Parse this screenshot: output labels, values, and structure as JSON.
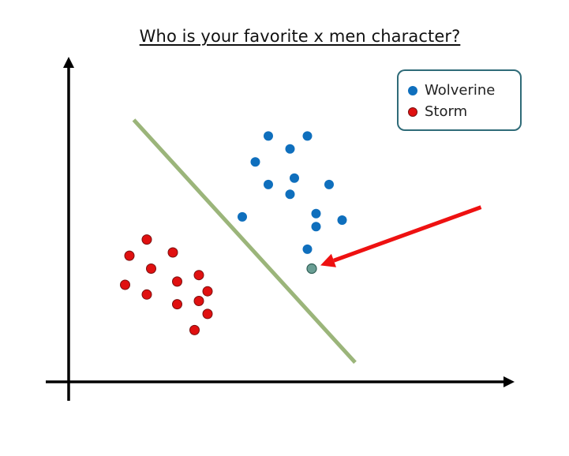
{
  "chart_data": {
    "type": "scatter",
    "title": "Who is your favorite x men character?",
    "xlabel": "",
    "ylabel": "",
    "xlim": [
      0,
      10
    ],
    "ylim": [
      0,
      10
    ],
    "grid": false,
    "legend_position": "top-right",
    "series": [
      {
        "name": "Wolverine",
        "color": "#0f6fbd",
        "points": [
          [
            4.6,
            7.6
          ],
          [
            5.1,
            7.2
          ],
          [
            5.5,
            7.6
          ],
          [
            4.3,
            6.8
          ],
          [
            4.6,
            6.1
          ],
          [
            4.0,
            5.1
          ],
          [
            5.1,
            5.8
          ],
          [
            5.2,
            6.3
          ],
          [
            6.0,
            6.1
          ],
          [
            5.7,
            5.2
          ],
          [
            5.7,
            4.8
          ],
          [
            5.5,
            4.1
          ],
          [
            6.3,
            5.0
          ]
        ]
      },
      {
        "name": "Storm",
        "color": "#e01010",
        "points": [
          [
            1.8,
            4.4
          ],
          [
            1.4,
            3.9
          ],
          [
            2.4,
            4.0
          ],
          [
            1.9,
            3.5
          ],
          [
            1.3,
            3.0
          ],
          [
            2.5,
            3.1
          ],
          [
            3.0,
            3.3
          ],
          [
            1.8,
            2.7
          ],
          [
            2.5,
            2.4
          ],
          [
            3.0,
            2.5
          ],
          [
            3.2,
            2.8
          ],
          [
            3.2,
            2.1
          ],
          [
            2.9,
            1.6
          ]
        ]
      },
      {
        "color": "#6a9e94",
        "points": [
          [
            5.6,
            3.5
          ]
        ]
      }
    ],
    "decision_boundary": {
      "color": "#9bb57a",
      "from": [
        1.5,
        8.1
      ],
      "to": [
        6.6,
        0.6
      ]
    },
    "pointer_arrow": {
      "color": "#ee1111",
      "from": [
        9.5,
        5.4
      ],
      "to": [
        5.8,
        3.6
      ]
    }
  }
}
